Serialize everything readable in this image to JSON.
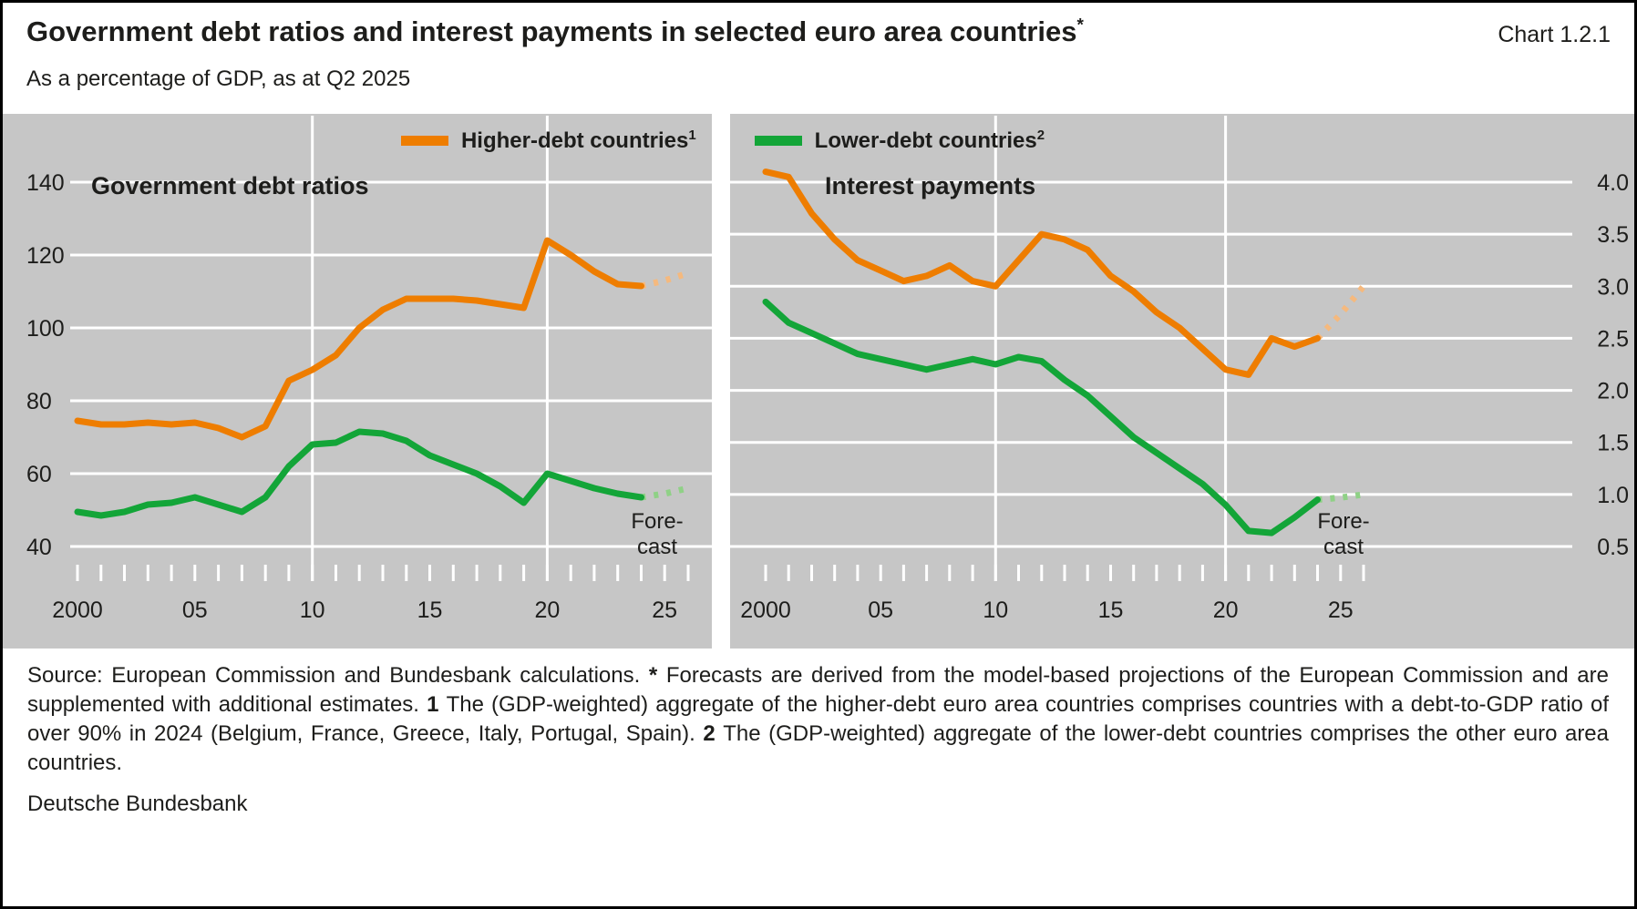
{
  "header": {
    "title": "Government debt ratios and interest payments in selected euro area countries",
    "title_sup": "*",
    "chart_ref": "Chart 1.2.1",
    "subtitle": "As a percentage of GDP, as at Q2 2025"
  },
  "legend": [
    {
      "label": "Higher-debt countries",
      "sup": "1",
      "color": "#ee7d00"
    },
    {
      "label": "Lower-debt countries",
      "sup": "2",
      "color": "#13a538"
    }
  ],
  "colors": {
    "higher_debt": "#ee7d00",
    "lower_debt": "#13a538",
    "higher_debt_forecast": "#f5b97e",
    "lower_debt_forecast": "#8fd186",
    "plot_background": "#c6c6c6",
    "gridline": "#ffffff"
  },
  "chart_data": [
    {
      "type": "line",
      "title": "Government debt ratios",
      "y_axis_side": "left",
      "xlim": [
        2000,
        2026
      ],
      "ylim": [
        40,
        140
      ],
      "grid": true,
      "y_ticks": [
        {
          "v": 40,
          "label": "40"
        },
        {
          "v": 60,
          "label": "60"
        },
        {
          "v": 80,
          "label": "80"
        },
        {
          "v": 100,
          "label": "100"
        },
        {
          "v": 120,
          "label": "120"
        },
        {
          "v": 140,
          "label": "140"
        }
      ],
      "x_ticks": [
        {
          "x": 2000,
          "label": "2000"
        },
        {
          "x": 2005,
          "label": "05"
        },
        {
          "x": 2010,
          "label": "10"
        },
        {
          "x": 2015,
          "label": "15"
        },
        {
          "x": 2020,
          "label": "20"
        },
        {
          "x": 2025,
          "label": "25"
        }
      ],
      "vgrid_years": [
        2010,
        2020
      ],
      "forecast_label": [
        "Fore-",
        "cast"
      ],
      "years": [
        2000,
        2001,
        2002,
        2003,
        2004,
        2005,
        2006,
        2007,
        2008,
        2009,
        2010,
        2011,
        2012,
        2013,
        2014,
        2015,
        2016,
        2017,
        2018,
        2019,
        2020,
        2021,
        2022,
        2023,
        2024
      ],
      "series": [
        {
          "name": "Higher-debt countries",
          "color": "#ee7d00",
          "forecast_color": "#f5b97e",
          "values": [
            74.5,
            73.5,
            73.5,
            74,
            73.5,
            74,
            72.5,
            70,
            73,
            85.5,
            88.5,
            92.5,
            100,
            105,
            108,
            108,
            108,
            107.5,
            106.5,
            105.5,
            124,
            120,
            115.5,
            112,
            111.5
          ],
          "forecast_years": [
            2024,
            2025,
            2026
          ],
          "forecast_values": [
            111.5,
            113,
            115
          ]
        },
        {
          "name": "Lower-debt countries",
          "color": "#13a538",
          "forecast_color": "#8fd186",
          "values": [
            49.5,
            48.5,
            49.5,
            51.5,
            52,
            53.5,
            51.5,
            49.5,
            53.5,
            62,
            68,
            68.5,
            71.5,
            71,
            69,
            65,
            62.5,
            60,
            56.5,
            52,
            60,
            58,
            56,
            54.5,
            53.5
          ],
          "forecast_years": [
            2024,
            2025,
            2026
          ],
          "forecast_values": [
            53.5,
            54.5,
            56
          ]
        }
      ]
    },
    {
      "type": "line",
      "title": "Interest payments",
      "y_axis_side": "right",
      "xlim": [
        2000,
        2026
      ],
      "ylim": [
        0.5,
        4.0
      ],
      "grid": true,
      "y_ticks": [
        {
          "v": 0.5,
          "label": "0.5"
        },
        {
          "v": 1.0,
          "label": "1.0"
        },
        {
          "v": 1.5,
          "label": "1.5"
        },
        {
          "v": 2.0,
          "label": "2.0"
        },
        {
          "v": 2.5,
          "label": "2.5"
        },
        {
          "v": 3.0,
          "label": "3.0"
        },
        {
          "v": 3.5,
          "label": "3.5"
        },
        {
          "v": 4.0,
          "label": "4.0"
        }
      ],
      "x_ticks": [
        {
          "x": 2000,
          "label": "2000"
        },
        {
          "x": 2005,
          "label": "05"
        },
        {
          "x": 2010,
          "label": "10"
        },
        {
          "x": 2015,
          "label": "15"
        },
        {
          "x": 2020,
          "label": "20"
        },
        {
          "x": 2025,
          "label": "25"
        }
      ],
      "vgrid_years": [
        2010,
        2020
      ],
      "forecast_label": [
        "Fore-",
        "cast"
      ],
      "years": [
        2000,
        2001,
        2002,
        2003,
        2004,
        2005,
        2006,
        2007,
        2008,
        2009,
        2010,
        2011,
        2012,
        2013,
        2014,
        2015,
        2016,
        2017,
        2018,
        2019,
        2020,
        2021,
        2022,
        2023,
        2024
      ],
      "series": [
        {
          "name": "Higher-debt countries",
          "color": "#ee7d00",
          "forecast_color": "#f5b97e",
          "values": [
            4.1,
            4.05,
            3.7,
            3.45,
            3.25,
            3.15,
            3.05,
            3.1,
            3.2,
            3.05,
            3.0,
            3.25,
            3.5,
            3.45,
            3.35,
            3.1,
            2.95,
            2.75,
            2.6,
            2.4,
            2.2,
            2.15,
            2.5,
            2.42,
            2.5
          ],
          "forecast_years": [
            2024,
            2025,
            2026
          ],
          "forecast_values": [
            2.5,
            2.73,
            3.0
          ]
        },
        {
          "name": "Lower-debt countries",
          "color": "#13a538",
          "forecast_color": "#8fd186",
          "values": [
            2.85,
            2.65,
            2.55,
            2.45,
            2.35,
            2.3,
            2.25,
            2.2,
            2.25,
            2.3,
            2.25,
            2.32,
            2.28,
            2.1,
            1.95,
            1.75,
            1.55,
            1.4,
            1.25,
            1.1,
            0.9,
            0.65,
            0.63,
            0.78,
            0.95
          ],
          "forecast_years": [
            2024,
            2025,
            2026
          ],
          "forecast_values": [
            0.95,
            0.97,
            1.0
          ]
        }
      ]
    }
  ],
  "footnote": {
    "segments": [
      {
        "t": "Source: European Commission and Bundesbank calculations. ",
        "b": false
      },
      {
        "t": "* ",
        "b": true
      },
      {
        "t": "Forecasts are derived from the model-based projections of the European Commission and are supplemented with additional estimates. ",
        "b": false
      },
      {
        "t": "1 ",
        "b": true
      },
      {
        "t": "The (GDP-weighted) aggregate of the higher-debt euro area countries comprises countries with a debt-to-GDP ratio of over 90% in 2024 (Belgium, France, Greece, Italy, Portugal, Spain). ",
        "b": false
      },
      {
        "t": "2 ",
        "b": true
      },
      {
        "t": "The (GDP-weighted) aggregate of the lower-debt countries comprises the other euro area countries.",
        "b": false
      }
    ]
  },
  "publisher": "Deutsche Bundesbank"
}
